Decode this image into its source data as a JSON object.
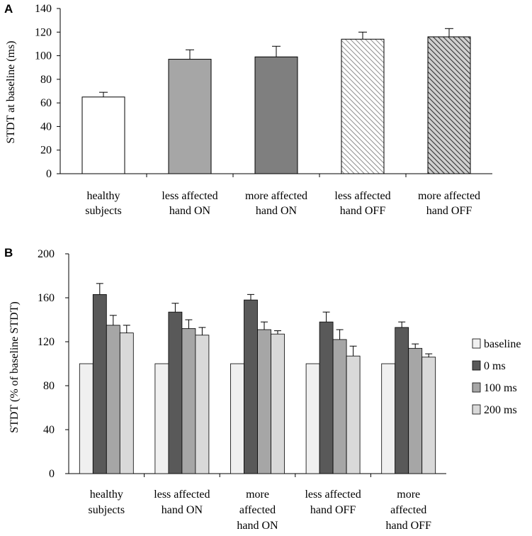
{
  "chart_data": [
    {
      "type": "bar",
      "panel": "A",
      "ylabel": "STDT at baseline (ms)",
      "ylim": [
        0,
        140
      ],
      "yticks": [
        0,
        20,
        40,
        60,
        80,
        100,
        120,
        140
      ],
      "categories": [
        [
          "healthy",
          "subjects"
        ],
        [
          "less affected",
          "hand ON"
        ],
        [
          "more affected",
          "hand ON"
        ],
        [
          "less affected",
          "hand OFF"
        ],
        [
          "more affected",
          "hand OFF"
        ]
      ],
      "values": [
        65,
        97,
        99,
        114,
        116
      ],
      "errors": [
        4,
        8,
        9,
        6,
        7
      ],
      "fills": [
        "#ffffff",
        "#a6a6a6",
        "#7f7f7f",
        "hatch-light",
        "hatch-dark"
      ]
    },
    {
      "type": "bar",
      "panel": "B",
      "ylabel": "STDT (% of baseline STDT)",
      "ylim": [
        0,
        200
      ],
      "yticks": [
        0,
        40,
        80,
        120,
        160,
        200
      ],
      "categories": [
        [
          "healthy",
          "subjects"
        ],
        [
          "less affected",
          "hand ON"
        ],
        [
          "more",
          "affected",
          "hand ON"
        ],
        [
          "less affected",
          "hand OFF"
        ],
        [
          "more",
          "affected",
          "hand OFF"
        ]
      ],
      "series": [
        {
          "name": "baseline",
          "color": "#f0f0f0",
          "values": [
            100,
            100,
            100,
            100,
            100
          ],
          "errors": [
            0,
            0,
            0,
            0,
            0
          ]
        },
        {
          "name": "0 ms",
          "color": "#595959",
          "values": [
            163,
            147,
            158,
            138,
            133
          ],
          "errors": [
            10,
            8,
            5,
            9,
            5
          ]
        },
        {
          "name": "100 ms",
          "color": "#a6a6a6",
          "values": [
            135,
            132,
            131,
            122,
            114
          ],
          "errors": [
            9,
            8,
            7,
            9,
            4
          ]
        },
        {
          "name": "200 ms",
          "color": "#d9d9d9",
          "values": [
            128,
            126,
            127,
            107,
            106
          ],
          "errors": [
            7,
            7,
            3,
            9,
            3
          ]
        }
      ],
      "legend_position": "right"
    }
  ]
}
